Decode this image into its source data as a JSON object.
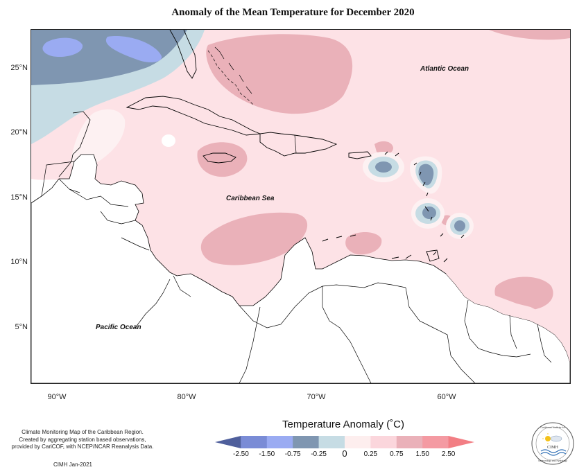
{
  "title": "Anomaly of the Mean Temperature for December 2020",
  "y_axis_labels": [
    "25°N",
    "20°N",
    "15°N",
    "10°N",
    "5°N"
  ],
  "x_axis_labels": [
    "90°W",
    "80°W",
    "70°W",
    "60°W"
  ],
  "ocean_labels": {
    "atlantic": "Atlantic Ocean",
    "caribbean": "Caribbean Sea",
    "pacific": "Pacific Ocean"
  },
  "credit": {
    "line1": "Climate Monitoring Map of the Caribbean Region.",
    "line2": "Created by aggregating station based observations,",
    "line3": "provided by CariCOF, with NCEP/NCAR Reanalysis Data.",
    "date": "CIMH Jan-2021"
  },
  "legend": {
    "title": "Temperature Anomaly (˚C)",
    "ticks": [
      "-2.50",
      "-1.50",
      "-0.75",
      "-0.25",
      "0",
      "0.25",
      "0.75",
      "1.50",
      "2.50"
    ],
    "colors": [
      "#4f5f9c",
      "#7a8cd6",
      "#9aabf2",
      "#7f96b1",
      "#c6dce4",
      "#fdeeee",
      "#fbd6dc",
      "#eab1b9",
      "#f49aa2",
      "#f27e84"
    ]
  },
  "logo": {
    "top_text": "Caribbean Institute for",
    "name": "CIMH",
    "bottom_text": "Meteorology and Hydrology"
  }
}
